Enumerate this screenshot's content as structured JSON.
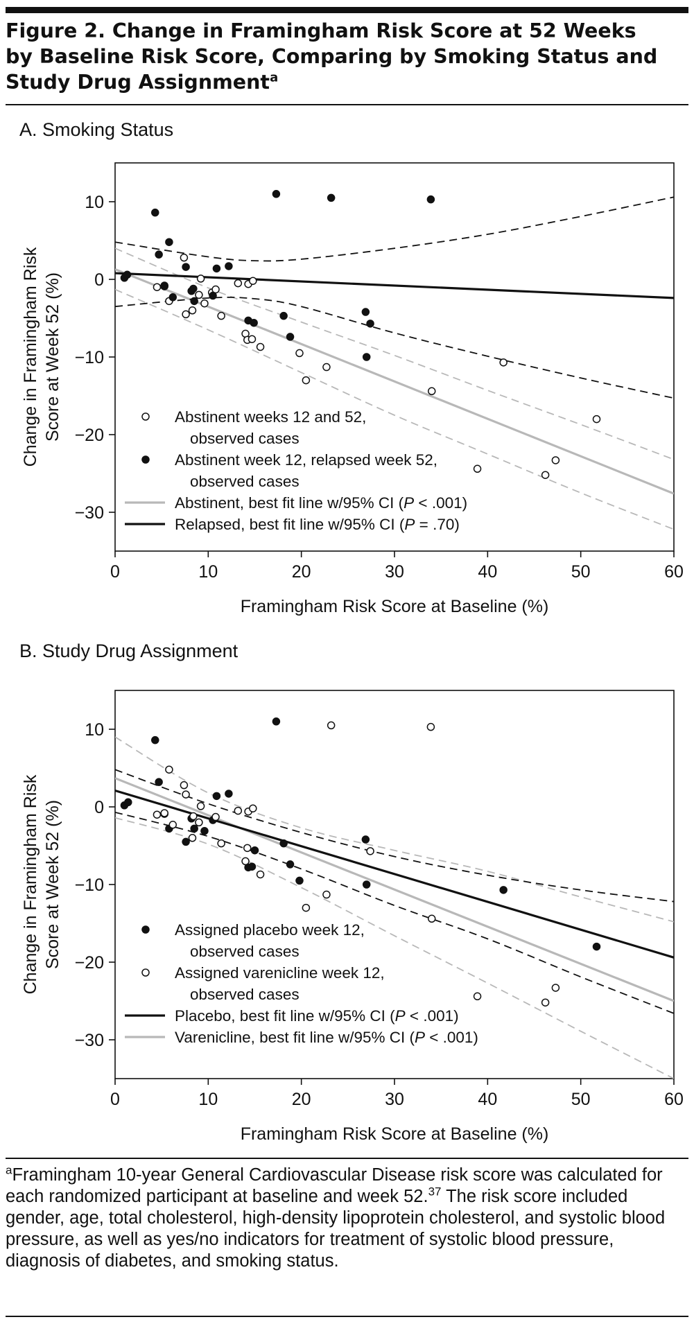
{
  "figure": {
    "title_line1": "Figure 2. Change in Framingham Risk Score at 52 Weeks",
    "title_line2": "by Baseline Risk Score, Comparing by Smoking Status and",
    "title_line3": "Study Drug Assignment",
    "title_marker": "a"
  },
  "footnote": {
    "marker": "a",
    "text": "Framingham 10-year General Cardiovascular Disease risk score was calculated for each randomized participant at baseline and week 52.",
    "ref": "37",
    "text2": " The risk score included gender, age, total cholesterol, high-density lipoprotein cholesterol, and systolic blood pressure, as well as yes/no indicators for treatment of systolic blood pressure, diagnosis of diabetes, and smoking status."
  },
  "chart_data": [
    {
      "type": "scatter",
      "panel_label": "A. Smoking Status",
      "xlabel": "Framingham Risk Score at Baseline (%)",
      "ylabel_line1": "Change in Framingham Risk",
      "ylabel_line2": "Score at Week 52 (%)",
      "xlim": [
        0,
        60
      ],
      "ylim": [
        -35,
        15
      ],
      "xticks": [
        0,
        10,
        20,
        30,
        40,
        50,
        60
      ],
      "yticks": [
        -30,
        -20,
        -10,
        0,
        10
      ],
      "grid": false,
      "legend_position": "bottom-left",
      "series": [
        {
          "name": "Abstinent weeks 12 and 52,",
          "name_line2": "observed cases",
          "marker": "open-circle",
          "points": [
            [
              4.5,
              -1
            ],
            [
              5.3,
              -0.8
            ],
            [
              5.8,
              -2.8
            ],
            [
              7.4,
              2.8
            ],
            [
              7.6,
              -4.5
            ],
            [
              8.3,
              -4
            ],
            [
              9.0,
              -2
            ],
            [
              9.2,
              0.1
            ],
            [
              9.6,
              -3.1
            ],
            [
              10.4,
              -1.7
            ],
            [
              10.8,
              -1.3
            ],
            [
              11.4,
              -4.7
            ],
            [
              13.2,
              -0.5
            ],
            [
              14.0,
              -7
            ],
            [
              14.2,
              -7.8
            ],
            [
              14.3,
              -0.6
            ],
            [
              14.7,
              -7.7
            ],
            [
              14.8,
              -0.2
            ],
            [
              15.6,
              -8.7
            ],
            [
              19.8,
              -9.5
            ],
            [
              20.5,
              -13
            ],
            [
              22.7,
              -11.3
            ],
            [
              34.0,
              -14.4
            ],
            [
              38.9,
              -24.4
            ],
            [
              41.7,
              -10.7
            ],
            [
              46.2,
              -25.2
            ],
            [
              47.3,
              -23.3
            ],
            [
              51.7,
              -18
            ]
          ]
        },
        {
          "name": "Abstinent week 12, relapsed week 52,",
          "name_line2": "observed cases",
          "marker": "filled-circle",
          "points": [
            [
              1.0,
              0.2
            ],
            [
              1.3,
              0.6
            ],
            [
              4.3,
              8.6
            ],
            [
              4.7,
              3.2
            ],
            [
              5.3,
              -0.9
            ],
            [
              5.8,
              4.8
            ],
            [
              6.2,
              -2.3
            ],
            [
              7.6,
              1.6
            ],
            [
              8.2,
              -1.5
            ],
            [
              8.4,
              -1.2
            ],
            [
              8.5,
              -2.8
            ],
            [
              10.5,
              -2.1
            ],
            [
              10.9,
              1.4
            ],
            [
              12.2,
              1.7
            ],
            [
              14.3,
              -5.3
            ],
            [
              14.9,
              -5.6
            ],
            [
              17.3,
              11
            ],
            [
              18.1,
              -4.7
            ],
            [
              18.8,
              -7.4
            ],
            [
              23.2,
              10.5
            ],
            [
              26.9,
              -4.2
            ],
            [
              27.0,
              -10
            ],
            [
              27.4,
              -5.7
            ],
            [
              33.9,
              10.3
            ]
          ]
        }
      ],
      "fit_lines": [
        {
          "name": "Abstinent, best fit line w/95% CI (",
          "p_text": "P",
          "name_suffix": " < .001)",
          "color": "#b8b8b8",
          "line": [
            [
              0,
              1.3
            ],
            [
              60,
              -27.6
            ]
          ],
          "ci_upper": [
            [
              0,
              4.0
            ],
            [
              10,
              -1.1
            ],
            [
              20,
              -5.5
            ],
            [
              30,
              -9.8
            ],
            [
              40,
              -14.3
            ],
            [
              50,
              -18.7
            ],
            [
              60,
              -23.2
            ]
          ],
          "ci_lower": [
            [
              0,
              -1.3
            ],
            [
              10,
              -6.5
            ],
            [
              20,
              -12.0
            ],
            [
              30,
              -17.5
            ],
            [
              40,
              -22.5
            ],
            [
              50,
              -27.5
            ],
            [
              60,
              -32.2
            ]
          ]
        },
        {
          "name": "Relapsed, best fit line w/95% CI (",
          "p_text": "P",
          "name_suffix": " = .70)",
          "color": "#111111",
          "line": [
            [
              0,
              0.8
            ],
            [
              60,
              -2.4
            ]
          ],
          "ci_upper": [
            [
              0,
              4.8
            ],
            [
              10,
              2.9
            ],
            [
              15,
              2.4
            ],
            [
              20,
              2.6
            ],
            [
              30,
              4.0
            ],
            [
              40,
              5.8
            ],
            [
              50,
              8.1
            ],
            [
              60,
              10.6
            ]
          ],
          "ci_lower": [
            [
              0,
              -3.5
            ],
            [
              10,
              -2.4
            ],
            [
              15,
              -2.5
            ],
            [
              20,
              -3.5
            ],
            [
              30,
              -6.9
            ],
            [
              40,
              -9.9
            ],
            [
              50,
              -12.7
            ],
            [
              60,
              -15.3
            ]
          ]
        }
      ]
    },
    {
      "type": "scatter",
      "panel_label": "B. Study Drug Assignment",
      "xlabel": "Framingham Risk Score at Baseline (%)",
      "ylabel_line1": "Change in Framingham Risk",
      "ylabel_line2": "Score at Week 52 (%)",
      "xlim": [
        0,
        60
      ],
      "ylim": [
        -35,
        15
      ],
      "xticks": [
        0,
        10,
        20,
        30,
        40,
        50,
        60
      ],
      "yticks": [
        -30,
        -20,
        -10,
        0,
        10
      ],
      "grid": false,
      "legend_position": "bottom-left",
      "series": [
        {
          "name": "Assigned placebo week 12,",
          "name_line2": "observed cases",
          "marker": "filled-circle",
          "points": [
            [
              1.0,
              0.2
            ],
            [
              1.4,
              0.6
            ],
            [
              4.3,
              8.6
            ],
            [
              4.7,
              3.2
            ],
            [
              5.3,
              -0.9
            ],
            [
              5.8,
              -2.8
            ],
            [
              7.6,
              -4.5
            ],
            [
              8.2,
              -1.5
            ],
            [
              8.5,
              -2.8
            ],
            [
              9.6,
              -3.1
            ],
            [
              10.5,
              -1.7
            ],
            [
              10.9,
              1.4
            ],
            [
              12.2,
              1.7
            ],
            [
              14.3,
              -7.8
            ],
            [
              14.7,
              -7.7
            ],
            [
              15.0,
              -5.6
            ],
            [
              17.3,
              11
            ],
            [
              18.1,
              -4.7
            ],
            [
              18.8,
              -7.4
            ],
            [
              19.8,
              -9.5
            ],
            [
              26.9,
              -4.2
            ],
            [
              27.0,
              -10
            ],
            [
              41.7,
              -10.7
            ],
            [
              51.7,
              -18
            ]
          ]
        },
        {
          "name": "Assigned varenicline week 12,",
          "name_line2": "observed cases",
          "marker": "open-circle",
          "points": [
            [
              4.5,
              -1
            ],
            [
              5.3,
              -0.8
            ],
            [
              5.8,
              4.8
            ],
            [
              6.2,
              -2.3
            ],
            [
              7.4,
              2.8
            ],
            [
              7.6,
              1.6
            ],
            [
              8.3,
              -4
            ],
            [
              8.4,
              -1.2
            ],
            [
              9.0,
              -2
            ],
            [
              9.2,
              0.1
            ],
            [
              10.8,
              -1.3
            ],
            [
              11.4,
              -4.7
            ],
            [
              13.2,
              -0.5
            ],
            [
              14.0,
              -7
            ],
            [
              14.2,
              -5.3
            ],
            [
              14.3,
              -0.6
            ],
            [
              14.8,
              -0.2
            ],
            [
              15.6,
              -8.7
            ],
            [
              20.5,
              -13
            ],
            [
              22.7,
              -11.3
            ],
            [
              23.2,
              10.5
            ],
            [
              27.4,
              -5.7
            ],
            [
              33.9,
              10.3
            ],
            [
              34.0,
              -14.4
            ],
            [
              38.9,
              -24.4
            ],
            [
              46.2,
              -25.2
            ],
            [
              47.3,
              -23.3
            ]
          ]
        }
      ],
      "fit_lines": [
        {
          "name": "Placebo, best fit line w/95% CI (",
          "p_text": "P",
          "name_suffix": " < .001)",
          "color": "#111111",
          "line": [
            [
              0,
              2.1
            ],
            [
              60,
              -19.4
            ]
          ],
          "ci_upper": [
            [
              0,
              4.8
            ],
            [
              10,
              0.4
            ],
            [
              20,
              -3.3
            ],
            [
              30,
              -6.4
            ],
            [
              40,
              -8.8
            ],
            [
              50,
              -10.7
            ],
            [
              60,
              -12.2
            ]
          ],
          "ci_lower": [
            [
              0,
              -0.7
            ],
            [
              10,
              -3.8
            ],
            [
              20,
              -8.0
            ],
            [
              30,
              -12.7
            ],
            [
              40,
              -17.0
            ],
            [
              50,
              -21.9
            ],
            [
              60,
              -26.6
            ]
          ]
        },
        {
          "name": "Varenicline, best fit line w/95% CI (",
          "p_text": "P",
          "name_suffix": " < .001)",
          "color": "#b8b8b8",
          "line": [
            [
              0,
              3.7
            ],
            [
              60,
              -25.0
            ]
          ],
          "ci_upper": [
            [
              0,
              9.0
            ],
            [
              10,
              1.8
            ],
            [
              20,
              -2.7
            ],
            [
              30,
              -5.6
            ],
            [
              40,
              -8.3
            ],
            [
              50,
              -11.6
            ],
            [
              60,
              -14.8
            ]
          ],
          "ci_lower": [
            [
              0,
              -1.4
            ],
            [
              10,
              -4.8
            ],
            [
              20,
              -10.4
            ],
            [
              30,
              -16.6
            ],
            [
              40,
              -22.7
            ],
            [
              50,
              -28.9
            ],
            [
              60,
              -35
            ]
          ]
        }
      ]
    }
  ]
}
